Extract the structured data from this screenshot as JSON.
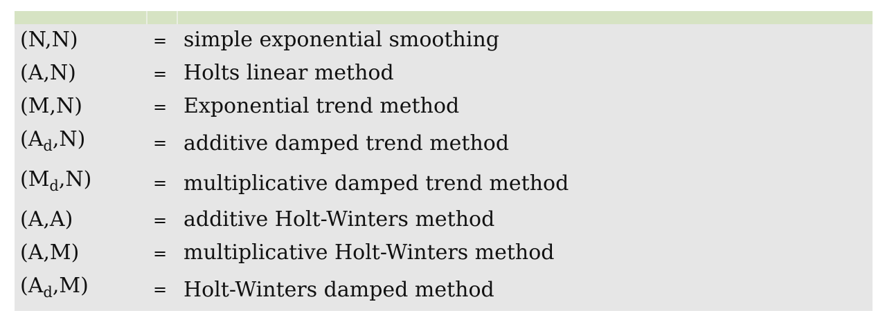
{
  "rows": [
    {
      "base": "(N,N)",
      "sub": "",
      "rest": "",
      "equals": "=",
      "description": "simple exponential smoothing"
    },
    {
      "base": "(A,N)",
      "sub": "",
      "rest": "",
      "equals": "=",
      "description": "Holts linear method"
    },
    {
      "base": "(M,N)",
      "sub": "",
      "rest": "",
      "equals": "=",
      "description": "Exponential trend method"
    },
    {
      "base": "(A",
      "sub": "d",
      "rest": ",N)",
      "equals": "=",
      "description": "additive damped trend method"
    },
    {
      "base": "(M",
      "sub": "d",
      "rest": ",N)",
      "equals": "=",
      "description": "multiplicative damped trend method"
    },
    {
      "base": "(A,A)",
      "sub": "",
      "rest": "",
      "equals": "=",
      "description": "additive Holt-Winters method"
    },
    {
      "base": "(A,M)",
      "sub": "",
      "rest": "",
      "equals": "=",
      "description": "multiplicative Holt-Winters method"
    },
    {
      "base": "(A",
      "sub": "d",
      "rest": ",M)",
      "equals": "=",
      "description": "Holt-Winters damped method"
    }
  ]
}
